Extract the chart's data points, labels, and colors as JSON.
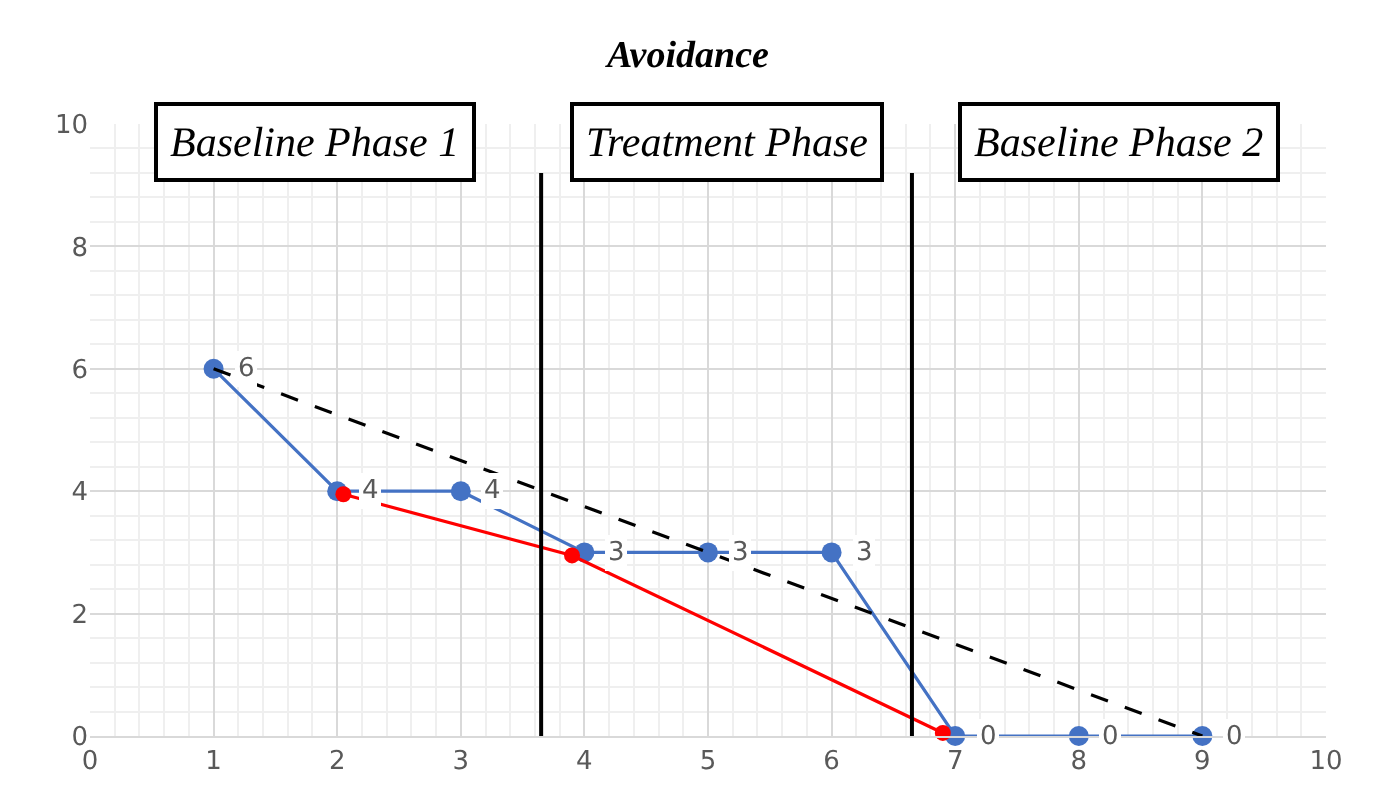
{
  "chart_data": {
    "type": "line",
    "title": "Avoidance",
    "xlim": [
      0,
      10
    ],
    "xticks": [
      0,
      1,
      2,
      3,
      4,
      5,
      6,
      7,
      8,
      9,
      10
    ],
    "ylim": [
      0,
      10
    ],
    "yticks": [
      0,
      2,
      4,
      6,
      8,
      10
    ],
    "grid": true,
    "marker": "circle",
    "x": [
      1,
      2,
      3,
      4,
      5,
      6,
      7,
      8,
      9
    ],
    "series": [
      {
        "color": "#4472c4",
        "values": [
          6,
          4,
          4,
          3,
          3,
          3,
          0,
          0,
          0
        ],
        "value_labels": [
          "6",
          "4",
          "4",
          "3",
          "3",
          "3",
          "0",
          "0",
          "0"
        ]
      },
      {
        "color": "#ff0000",
        "x": [
          2.05,
          3.9,
          6.9
        ],
        "values": [
          3.95,
          2.95,
          0.05
        ]
      },
      {
        "type": "line",
        "color": "#000000",
        "x": [
          1,
          9
        ],
        "values": [
          6,
          0
        ],
        "line_style": "dashed",
        "marker": "none"
      }
    ],
    "ref_lines": [
      {
        "axis": "x",
        "value": 3.65,
        "color": "#000000"
      },
      {
        "axis": "x",
        "value": 6.65,
        "color": "#000000"
      }
    ],
    "annotations": [
      "Baseline Phase 1",
      "Treatment Phase",
      "Baseline Phase 2"
    ]
  }
}
